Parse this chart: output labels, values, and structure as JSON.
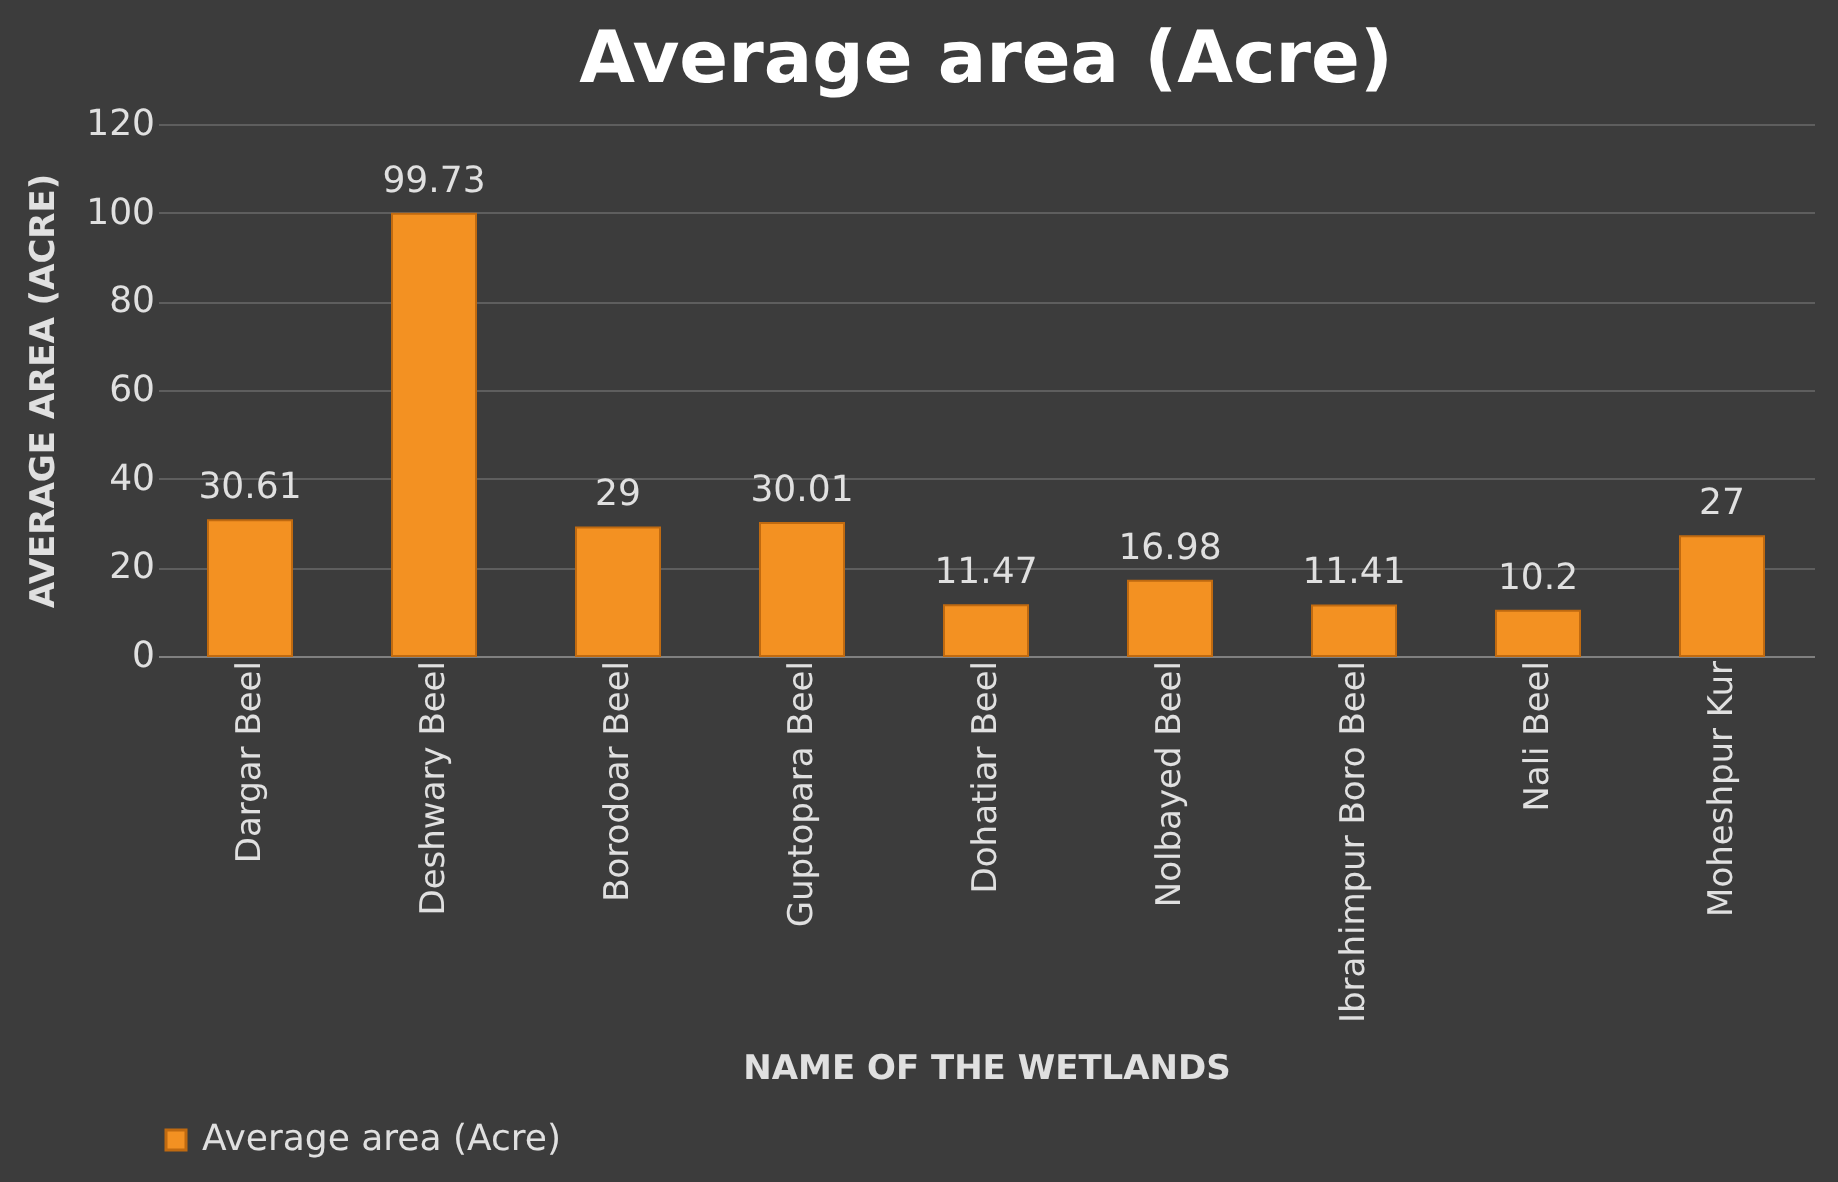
{
  "chart_data": {
    "type": "bar",
    "title": "Average area (Acre)",
    "xlabel": "NAME OF THE WETLANDS",
    "ylabel": "AVERAGE AREA (ACRE)",
    "categories": [
      "Dargar Beel",
      "Deshwary Beel",
      "Borodoar Beel",
      "Guptopara Beel",
      "Dohatiar Beel",
      "Nolbayed Beel",
      "Ibrahimpur Boro Beel",
      "Nali Beel",
      "Moheshpur Kur"
    ],
    "series": [
      {
        "name": "Average area (Acre)",
        "color": "#f39122",
        "values": [
          30.61,
          99.73,
          29,
          30.01,
          11.47,
          16.98,
          11.41,
          10.2,
          27
        ]
      }
    ],
    "ylim": [
      0,
      120
    ],
    "yticks": [
      0,
      20,
      40,
      60,
      80,
      100,
      120
    ],
    "grid": "y",
    "legend": "bottom",
    "data_labels": true
  }
}
